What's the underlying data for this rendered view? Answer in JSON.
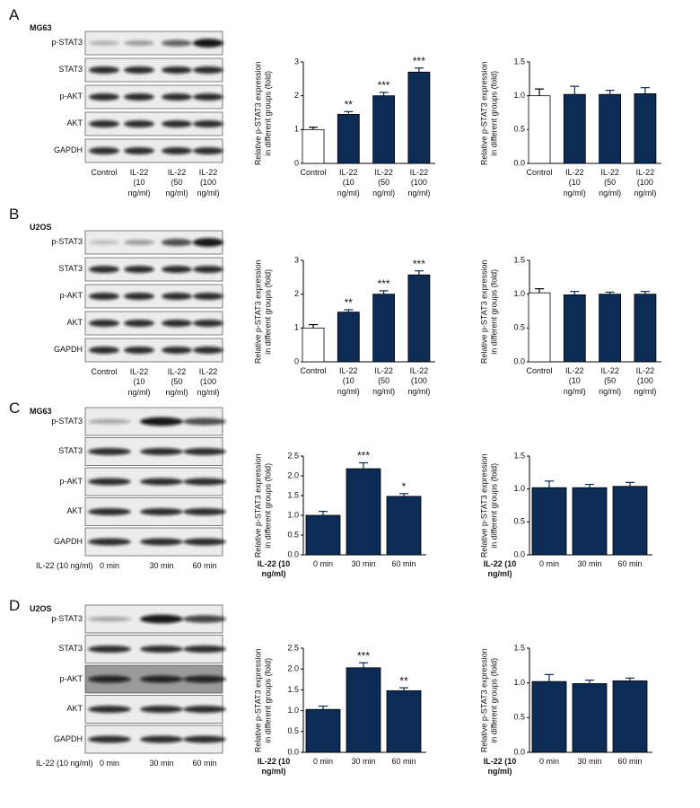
{
  "panels": [
    {
      "letter": "A",
      "cell_line": "MG63",
      "blot_rows": [
        "p-STAT3",
        "STAT3",
        "p-AKT",
        "AKT",
        "GAPDH"
      ],
      "lanes": [
        "Control",
        "IL-22 (10 ng/ml)",
        "IL-22 (50 ng/ml)",
        "IL-22 (100 ng/ml)"
      ]
    },
    {
      "letter": "B",
      "cell_line": "U2OS",
      "blot_rows": [
        "p-STAT3",
        "STAT3",
        "p-AKT",
        "AKT",
        "GAPDH"
      ],
      "lanes": [
        "Control",
        "IL-22 (10 ng/ml)",
        "IL-22 (50 ng/ml)",
        "IL-22 (100 ng/ml)"
      ]
    },
    {
      "letter": "C",
      "cell_line": "MG63",
      "treatment": "IL-22 (10 ng/ml)",
      "blot_rows": [
        "p-STAT3",
        "STAT3",
        "p-AKT",
        "AKT",
        "GAPDH"
      ],
      "lanes": [
        "0 min",
        "30 min",
        "60 min"
      ]
    },
    {
      "letter": "D",
      "cell_line": "U2OS",
      "treatment": "IL-22 (10 ng/ml)",
      "blot_rows": [
        "p-STAT3",
        "STAT3",
        "p-AKT",
        "AKT",
        "GAPDH"
      ],
      "lanes": [
        "0 min",
        "30 min",
        "60 min"
      ]
    }
  ],
  "chart_data": [
    {
      "type": "bar",
      "y_label": "Relative p-STAT3 expression in different groups (fold)",
      "categories": [
        "Control",
        "IL-22 (10 ng/ml)",
        "IL-22 (50 ng/ml)",
        "IL-22 (100 ng/ml)"
      ],
      "values": [
        1.0,
        1.45,
        2.0,
        2.7
      ],
      "errors": [
        0.07,
        0.08,
        0.1,
        0.12
      ],
      "annotations": [
        null,
        "**",
        "***",
        "***"
      ],
      "colors": [
        "#ffffff",
        "#0c2b55",
        "#0c2b55",
        "#0c2b55"
      ],
      "ylim": [
        0,
        3
      ],
      "yticks": [
        0,
        1,
        2,
        3
      ]
    },
    {
      "type": "bar",
      "y_label": "Relative p-STAT3 expression in different groups (fold)",
      "categories": [
        "Control",
        "IL-22 (10 ng/ml)",
        "IL-22 (50 ng/ml)",
        "IL-22 (100 ng/ml)"
      ],
      "values": [
        1.0,
        1.02,
        1.02,
        1.03
      ],
      "errors": [
        0.1,
        0.12,
        0.06,
        0.09
      ],
      "colors": [
        "#ffffff",
        "#0c2b55",
        "#0c2b55",
        "#0c2b55"
      ],
      "ylim": [
        0,
        1.5
      ],
      "yticks": [
        {
          "value": 0,
          "label": "0.0"
        },
        0.5,
        {
          "value": 1,
          "label": "1.0"
        },
        1.5
      ]
    },
    {
      "type": "bar",
      "y_label": "Relative p-STAT3 expression in different groups (fold)",
      "categories": [
        "Control",
        "IL-22 (10 ng/ml)",
        "IL-22 (50 ng/ml)",
        "IL-22 (100 ng/ml)"
      ],
      "values": [
        1.0,
        1.47,
        2.0,
        2.57
      ],
      "errors": [
        0.1,
        0.07,
        0.1,
        0.12
      ],
      "annotations": [
        null,
        "**",
        "***",
        "***"
      ],
      "colors": [
        "#ffffff",
        "#0c2b55",
        "#0c2b55",
        "#0c2b55"
      ],
      "ylim": [
        0,
        3
      ],
      "yticks": [
        0,
        1,
        2,
        3
      ]
    },
    {
      "type": "bar",
      "y_label": "Relative p-STAT3 expression in different groups (fold)",
      "categories": [
        "Control",
        "IL-22 (10 ng/ml)",
        "IL-22 (50 ng/ml)",
        "IL-22 (100 ng/ml)"
      ],
      "values": [
        1.02,
        0.99,
        1.0,
        1.0
      ],
      "errors": [
        0.06,
        0.05,
        0.03,
        0.04
      ],
      "colors": [
        "#ffffff",
        "#0c2b55",
        "#0c2b55",
        "#0c2b55"
      ],
      "ylim": [
        0,
        1.5
      ],
      "yticks": [
        {
          "value": 0,
          "label": "0.0"
        },
        0.5,
        {
          "value": 1,
          "label": "1.0"
        },
        1.5
      ]
    },
    {
      "type": "bar",
      "y_label": "Relative p-STAT3 expression in different groups (fold)",
      "x_label": "IL-22 (10 ng/ml)",
      "categories": [
        "0 min",
        "30 min",
        "60 min"
      ],
      "values": [
        1.0,
        2.18,
        1.48
      ],
      "errors": [
        0.1,
        0.15,
        0.07
      ],
      "annotations": [
        null,
        "***",
        "*"
      ],
      "colors": [
        "#0c2b55",
        "#0c2b55",
        "#0c2b55"
      ],
      "ylim": [
        0,
        2.5
      ],
      "yticks": [
        {
          "value": 0,
          "label": "0.0"
        },
        0.5,
        {
          "value": 1,
          "label": "1.0"
        },
        1.5,
        {
          "value": 2,
          "label": "2.0"
        },
        2.5
      ]
    },
    {
      "type": "bar",
      "y_label": "Relative p-STAT3 expression in different groups (fold)",
      "x_label": "IL-22 (10 ng/ml)",
      "categories": [
        "0 min",
        "30 min",
        "60 min"
      ],
      "values": [
        1.02,
        1.02,
        1.04
      ],
      "errors": [
        0.1,
        0.05,
        0.06
      ],
      "colors": [
        "#0c2b55",
        "#0c2b55",
        "#0c2b55"
      ],
      "ylim": [
        0,
        1.5
      ],
      "yticks": [
        {
          "value": 0,
          "label": "0.0"
        },
        0.5,
        {
          "value": 1,
          "label": "1.0"
        },
        1.5
      ]
    },
    {
      "type": "bar",
      "y_label": "Relative p-STAT3 expression in different groups (fold)",
      "x_label": "IL-22 (10 ng/ml)",
      "categories": [
        "0 min",
        "30 min",
        "60 min"
      ],
      "values": [
        1.03,
        2.03,
        1.48
      ],
      "errors": [
        0.08,
        0.12,
        0.07
      ],
      "annotations": [
        null,
        "***",
        "**"
      ],
      "colors": [
        "#0c2b55",
        "#0c2b55",
        "#0c2b55"
      ],
      "ylim": [
        0,
        2.5
      ],
      "yticks": [
        {
          "value": 0,
          "label": "0.0"
        },
        0.5,
        {
          "value": 1,
          "label": "1.0"
        },
        1.5,
        {
          "value": 2,
          "label": "2.0"
        },
        2.5
      ]
    },
    {
      "type": "bar",
      "y_label": "Relative p-STAT3 expression in different groups (fold)",
      "x_label": "IL-22 (10 ng/ml)",
      "categories": [
        "0 min",
        "30 min",
        "60 min"
      ],
      "values": [
        1.02,
        0.99,
        1.03
      ],
      "errors": [
        0.1,
        0.05,
        0.04
      ],
      "colors": [
        "#0c2b55",
        "#0c2b55",
        "#0c2b55"
      ],
      "ylim": [
        0,
        1.5
      ],
      "yticks": [
        {
          "value": 0,
          "label": "0.0"
        },
        0.5,
        {
          "value": 1,
          "label": "1.0"
        },
        1.5
      ]
    }
  ]
}
